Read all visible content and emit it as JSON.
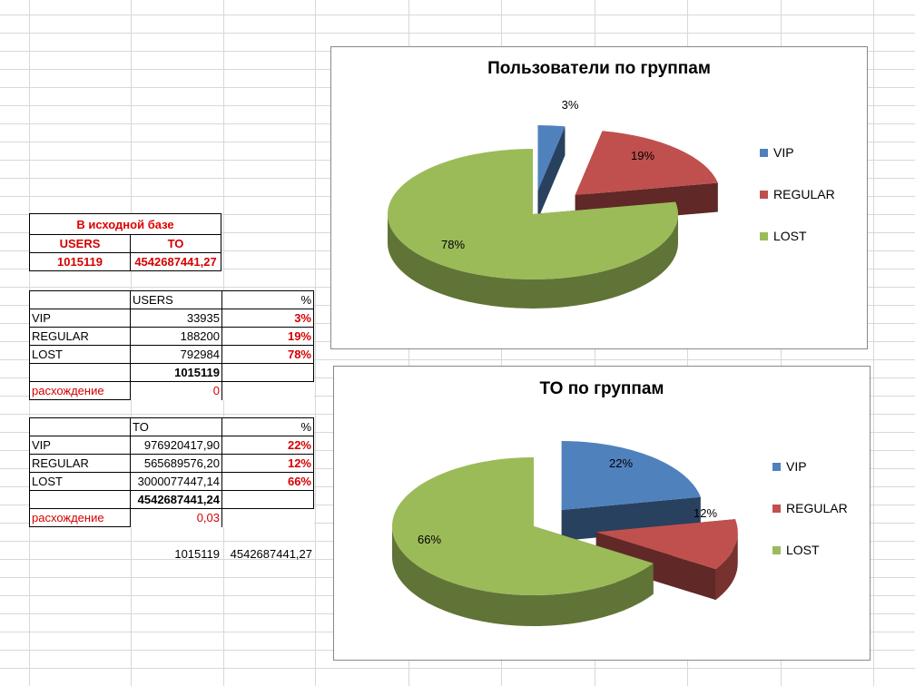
{
  "colors": {
    "vip": "#4f81bd",
    "regular": "#c0504d",
    "lost": "#9bbb59"
  },
  "source": {
    "title": "В исходной базе",
    "col_users": "USERS",
    "col_to": "TO",
    "users": "1015119",
    "to": "4542687441,27"
  },
  "users_table": {
    "col_users": "USERS",
    "col_pct": "%",
    "rows": [
      {
        "label": "VIP",
        "value": "33935",
        "pct": "3%"
      },
      {
        "label": "REGULAR",
        "value": "188200",
        "pct": "19%"
      },
      {
        "label": "LOST",
        "value": "792984",
        "pct": "78%"
      }
    ],
    "total": "1015119",
    "diff_label": "расхождение",
    "diff_value": "0"
  },
  "to_table": {
    "col_to": "TO",
    "col_pct": "%",
    "rows": [
      {
        "label": "VIP",
        "value": "976920417,90",
        "pct": "22%"
      },
      {
        "label": "REGULAR",
        "value": "565689576,20",
        "pct": "12%"
      },
      {
        "label": "LOST",
        "value": "3000077447,14",
        "pct": "66%"
      }
    ],
    "total": "4542687441,24",
    "diff_label": "расхождение",
    "diff_value": "0,03"
  },
  "footer": {
    "users": "1015119",
    "to": "4542687441,27"
  },
  "chart_data": [
    {
      "type": "pie",
      "title": "Пользователи по группам",
      "categories": [
        "VIP",
        "REGULAR",
        "LOST"
      ],
      "values": [
        3,
        19,
        78
      ],
      "labels": [
        "3%",
        "19%",
        "78%"
      ],
      "legend_position": "right"
    },
    {
      "type": "pie",
      "title": "ТО по группам",
      "categories": [
        "VIP",
        "REGULAR",
        "LOST"
      ],
      "values": [
        22,
        12,
        66
      ],
      "labels": [
        "22%",
        "12%",
        "66%"
      ],
      "legend_position": "right"
    }
  ]
}
